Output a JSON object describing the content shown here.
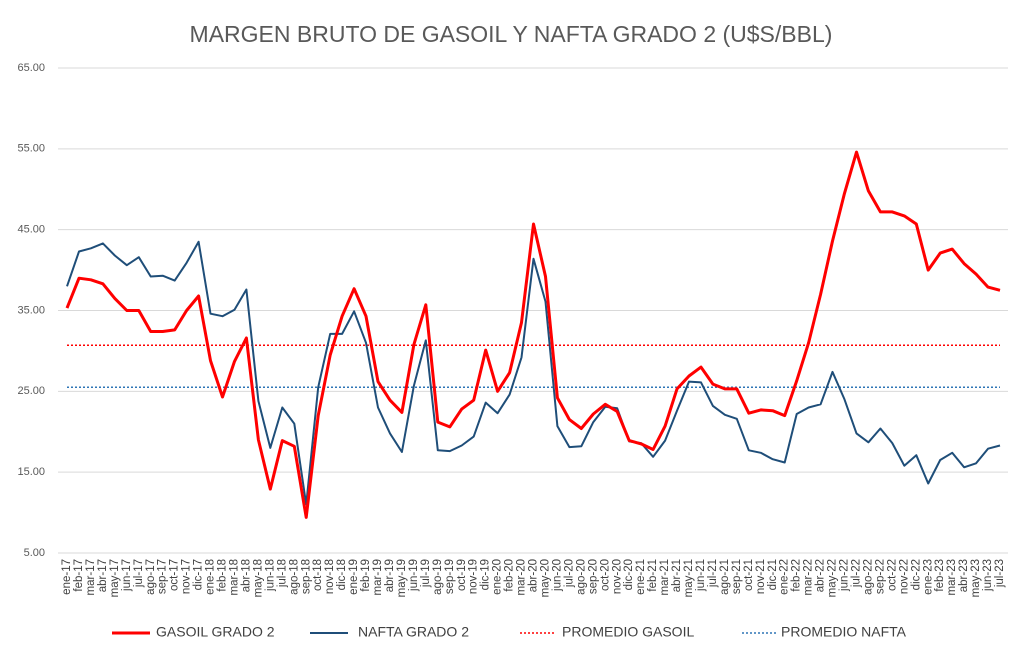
{
  "chart_data": {
    "type": "line",
    "title": "MARGEN BRUTO DE GASOIL Y NAFTA GRADO 2 (U$S/BBL)",
    "categories": [
      "ene-17",
      "feb-17",
      "mar-17",
      "abr-17",
      "may-17",
      "jun-17",
      "jul-17",
      "ago-17",
      "sep-17",
      "oct-17",
      "nov-17",
      "dic-17",
      "ene-18",
      "feb-18",
      "mar-18",
      "abr-18",
      "may-18",
      "jun-18",
      "jul-18",
      "ago-18",
      "sep-18",
      "oct-18",
      "nov-18",
      "dic-18",
      "ene-19",
      "feb-19",
      "mar-19",
      "abr-19",
      "may-19",
      "jun-19",
      "jul-19",
      "ago-19",
      "sep-19",
      "oct-19",
      "nov-19",
      "dic-19",
      "ene-20",
      "feb-20",
      "mar-20",
      "abr-20",
      "may-20",
      "jun-20",
      "jul-20",
      "ago-20",
      "sep-20",
      "oct-20",
      "nov-20",
      "dic-20",
      "ene-21",
      "feb-21",
      "mar-21",
      "abr-21",
      "may-21",
      "jun-21",
      "jul-21",
      "ago-21",
      "sep-21",
      "oct-21",
      "nov-21",
      "dic-21",
      "ene-22",
      "feb-22",
      "mar-22",
      "abr-22",
      "may-22",
      "jun-22",
      "jul-22",
      "ago-22",
      "sep-22",
      "oct-22",
      "nov-22",
      "dic-22",
      "ene-23",
      "feb-23",
      "mar-23",
      "abr-23",
      "may-23",
      "jun-23",
      "jul-23"
    ],
    "series": [
      {
        "name": "GASOIL GRADO 2",
        "color": "#ff0000",
        "values": [
          35.3,
          39.0,
          38.8,
          38.3,
          36.5,
          35.0,
          35.0,
          32.4,
          32.4,
          32.6,
          35.0,
          36.8,
          28.8,
          24.3,
          28.7,
          31.6,
          19.0,
          12.9,
          18.9,
          18.2,
          9.4,
          22.0,
          29.5,
          34.3,
          37.7,
          34.3,
          26.2,
          23.9,
          22.4,
          30.8,
          35.7,
          21.2,
          20.6,
          22.8,
          23.9,
          30.1,
          25.0,
          27.3,
          33.5,
          45.7,
          39.2,
          24.2,
          21.5,
          20.4,
          22.2,
          23.4,
          22.5,
          18.9,
          18.5,
          17.8,
          20.7,
          25.3,
          26.9,
          28.0,
          25.9,
          25.3,
          25.3,
          22.3,
          22.7,
          22.6,
          22.0,
          26.3,
          31.0,
          37.0,
          43.6,
          49.5,
          54.6,
          49.8,
          47.2,
          47.2,
          46.7,
          45.7,
          40.0,
          42.1,
          42.6,
          40.8,
          39.5,
          37.9,
          37.5
        ]
      },
      {
        "name": "NAFTA GRADO 2",
        "color": "#1f4e79",
        "values": [
          38.0,
          42.3,
          42.7,
          43.3,
          41.8,
          40.6,
          41.6,
          39.2,
          39.3,
          38.7,
          40.9,
          43.5,
          34.6,
          34.3,
          35.1,
          37.6,
          23.8,
          18.0,
          23.0,
          21.0,
          11.0,
          25.5,
          32.1,
          32.1,
          34.9,
          31.0,
          23.0,
          19.8,
          17.5,
          25.7,
          31.3,
          17.7,
          17.6,
          18.3,
          19.4,
          23.6,
          22.3,
          24.6,
          29.2,
          41.4,
          36.1,
          20.7,
          18.1,
          18.2,
          21.2,
          23.1,
          22.9,
          18.8,
          18.6,
          16.9,
          18.9,
          22.6,
          26.2,
          26.1,
          23.2,
          22.1,
          21.6,
          17.7,
          17.4,
          16.6,
          16.2,
          22.2,
          23.0,
          23.4,
          27.4,
          24.0,
          19.8,
          18.7,
          20.4,
          18.6,
          15.8,
          17.1,
          13.6,
          16.5,
          17.4,
          15.6,
          16.1,
          17.9,
          18.3
        ]
      }
    ],
    "averages": [
      {
        "name": "PROMEDIO GASOIL",
        "color": "#ff0000",
        "value": 30.7
      },
      {
        "name": "PROMEDIO NAFTA",
        "color": "#2e75b6",
        "value": 25.5
      }
    ],
    "ylim": [
      5,
      65
    ],
    "yticks": [
      {
        "value": 5,
        "label": "5.00"
      },
      {
        "value": 15,
        "label": "15.00"
      },
      {
        "value": 25,
        "label": "25.00"
      },
      {
        "value": 35,
        "label": "35.00"
      },
      {
        "value": 45,
        "label": "45.00"
      },
      {
        "value": 55,
        "label": "55.00"
      },
      {
        "value": 65,
        "label": "65.00"
      }
    ],
    "grid": true,
    "legend": "bottom"
  }
}
